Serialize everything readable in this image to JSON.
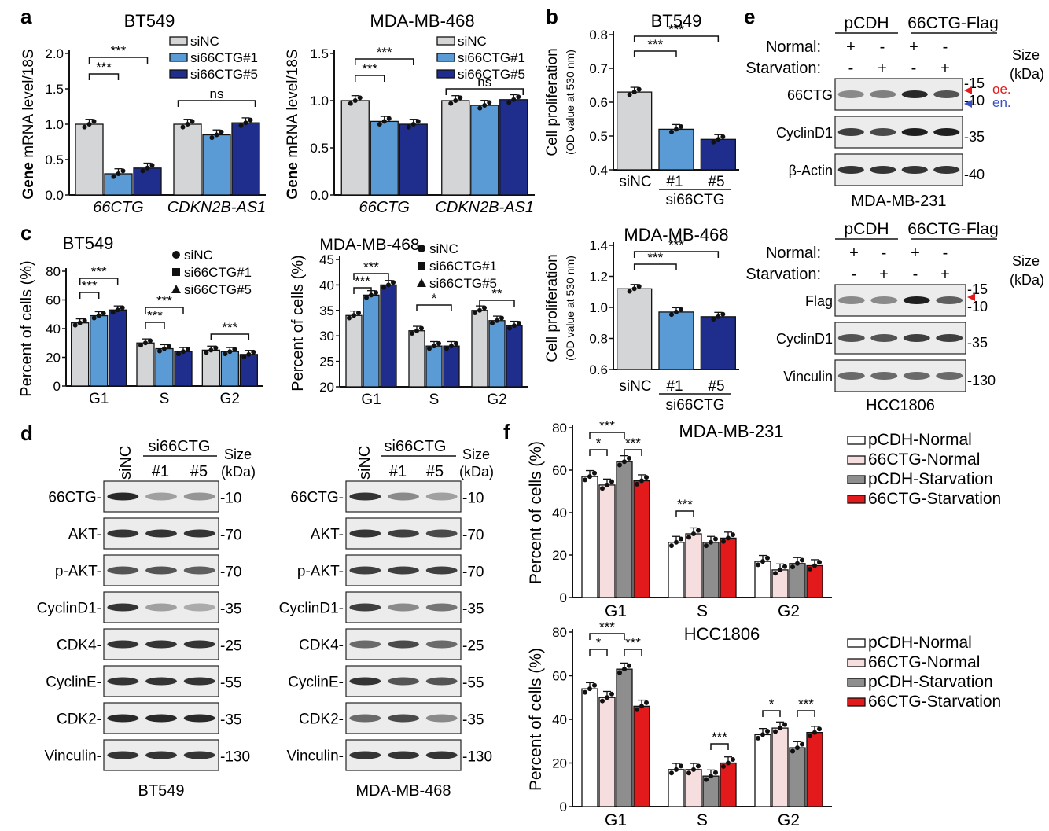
{
  "colors": {
    "grey": "#d4d5d6",
    "light_blue": "#5b9bd5",
    "dark_blue": "#1f2e8c",
    "pink": "#f6dede",
    "dark_grey": "#8e8e8e",
    "red": "#e31a1c",
    "oe_red": "#e31a1c",
    "en_blue": "#3a4fc0"
  },
  "panel_letters": [
    "a",
    "b",
    "c",
    "d",
    "e",
    "f"
  ],
  "stat_labels": {
    "sig3": "***",
    "sig2": "**",
    "sig1": "*",
    "ns": "ns"
  },
  "common": {
    "mrna_ylabel_bold": "Gene",
    "mrna_ylabel_rest": " mRNA level/18S",
    "prolif_ylabel": "Cell proliferation",
    "prolif_ylabel_sub": "(OD value at 530 nm)",
    "pct_ylabel": "Percent of cells (%)",
    "size_label": "Size",
    "kda_label": "(kDa)",
    "normal_label": "Normal:",
    "starv_label": "Starvation:",
    "plus": "+",
    "minus": "-",
    "sinc": "siNC",
    "si66ctg": "si66CTG",
    "lane1": "#1",
    "lane5": "#5",
    "pcdh": "pCDH",
    "flag_group": "66CTG-Flag",
    "oe": "oe.",
    "en": "en."
  },
  "chart_data": [
    {
      "id": "a1",
      "type": "bar",
      "title": "BT549",
      "categories": [
        "66CTG",
        "CDKN2B-AS1"
      ],
      "series": [
        {
          "name": "siNC",
          "values": [
            1.0,
            1.0
          ]
        },
        {
          "name": "si66CTG#1",
          "values": [
            0.3,
            0.85
          ]
        },
        {
          "name": "si66CTG#5",
          "values": [
            0.38,
            1.02
          ]
        }
      ],
      "ylim": [
        0,
        2.0
      ],
      "yticks": [
        "0.0",
        "0.5",
        "1.0",
        "1.5",
        "2.0"
      ]
    },
    {
      "id": "a2",
      "type": "bar",
      "title": "MDA-MB-468",
      "categories": [
        "66CTG",
        "CDKN2B-AS1"
      ],
      "series": [
        {
          "name": "siNC",
          "values": [
            1.0,
            1.0
          ]
        },
        {
          "name": "si66CTG#1",
          "values": [
            0.78,
            0.95
          ]
        },
        {
          "name": "si66CTG#5",
          "values": [
            0.75,
            1.01
          ]
        }
      ],
      "ylim": [
        0,
        1.5
      ],
      "yticks": [
        "0.0",
        "0.5",
        "1.0",
        "1.5"
      ]
    },
    {
      "id": "b1",
      "type": "bar",
      "title": "BT549",
      "categories": [
        "siNC",
        "#1",
        "#5"
      ],
      "values": [
        0.63,
        0.52,
        0.49
      ],
      "ylim": [
        0.4,
        0.8
      ],
      "yticks": [
        "0.4",
        "0.5",
        "0.6",
        "0.7",
        "0.8"
      ]
    },
    {
      "id": "b2",
      "type": "bar",
      "title": "MDA-MB-468",
      "categories": [
        "siNC",
        "#1",
        "#5"
      ],
      "values": [
        1.12,
        0.97,
        0.94
      ],
      "ylim": [
        0.6,
        1.4
      ],
      "yticks": [
        "0.6",
        "0.8",
        "1.0",
        "1.2",
        "1.4"
      ]
    },
    {
      "id": "c1",
      "type": "bar",
      "title": "BT549",
      "categories": [
        "G1",
        "S",
        "G2"
      ],
      "series": [
        {
          "name": "siNC",
          "values": [
            44,
            30,
            25
          ]
        },
        {
          "name": "si66CTG#1",
          "values": [
            49,
            26,
            24
          ]
        },
        {
          "name": "si66CTG#5",
          "values": [
            53,
            24,
            22
          ]
        }
      ],
      "ylim": [
        0,
        80
      ],
      "yticks": [
        "0",
        "20",
        "40",
        "60",
        "80"
      ]
    },
    {
      "id": "c2",
      "type": "bar",
      "title": "MDA-MB-468",
      "categories": [
        "G1",
        "S",
        "G2"
      ],
      "series": [
        {
          "name": "siNC",
          "values": [
            34,
            31,
            35
          ]
        },
        {
          "name": "si66CTG#1",
          "values": [
            38,
            28,
            33
          ]
        },
        {
          "name": "si66CTG#5",
          "values": [
            40,
            28,
            32
          ]
        }
      ],
      "ylim": [
        20,
        45
      ],
      "yticks": [
        "20",
        "25",
        "30",
        "35",
        "40",
        "45"
      ]
    },
    {
      "id": "f1",
      "type": "bar",
      "title": "MDA-MB-231",
      "categories": [
        "G1",
        "S",
        "G2"
      ],
      "series": [
        {
          "name": "pCDH-Normal",
          "values": [
            57,
            26,
            17
          ]
        },
        {
          "name": "66CTG-Normal",
          "values": [
            53,
            30,
            13
          ]
        },
        {
          "name": "pCDH-Starvation",
          "values": [
            64,
            26,
            16
          ]
        },
        {
          "name": "66CTG-Starvation",
          "values": [
            55,
            28,
            15
          ]
        }
      ],
      "ylim": [
        0,
        80
      ],
      "yticks": [
        "0",
        "20",
        "40",
        "60",
        "80"
      ]
    },
    {
      "id": "f2",
      "type": "bar",
      "title": "HCC1806",
      "categories": [
        "G1",
        "S",
        "G2"
      ],
      "series": [
        {
          "name": "pCDH-Normal",
          "values": [
            54,
            17,
            33
          ]
        },
        {
          "name": "66CTG-Normal",
          "values": [
            50,
            17,
            36
          ]
        },
        {
          "name": "pCDH-Starvation",
          "values": [
            63,
            14,
            27
          ]
        },
        {
          "name": "66CTG-Starvation",
          "values": [
            46,
            20,
            34
          ]
        }
      ],
      "ylim": [
        0,
        80
      ],
      "yticks": [
        "0",
        "20",
        "40",
        "60",
        "80"
      ]
    }
  ],
  "blots": {
    "d_left": {
      "cell_line": "BT549",
      "rows": [
        {
          "label": "66CTG-",
          "size": "-10"
        },
        {
          "label": "AKT-",
          "size": "-70"
        },
        {
          "label": "p-AKT-",
          "size": "-70"
        },
        {
          "label": "CyclinD1-",
          "size": "-35"
        },
        {
          "label": "CDK4-",
          "size": "-25"
        },
        {
          "label": "CyclinE-",
          "size": "-55"
        },
        {
          "label": "CDK2-",
          "size": "-35"
        },
        {
          "label": "Vinculin-",
          "size": "-130"
        }
      ]
    },
    "d_right": {
      "cell_line": "MDA-MB-468",
      "rows": [
        {
          "label": "66CTG-",
          "size": "-10"
        },
        {
          "label": "AKT-",
          "size": "-70"
        },
        {
          "label": "p-AKT-",
          "size": "-70"
        },
        {
          "label": "CyclinD1-",
          "size": "-35"
        },
        {
          "label": "CDK4-",
          "size": "-25"
        },
        {
          "label": "CyclinE-",
          "size": "-55"
        },
        {
          "label": "CDK2-",
          "size": "-35"
        },
        {
          "label": "Vinculin-",
          "size": "-130"
        }
      ]
    },
    "e_top": {
      "cell_line": "MDA-MB-231",
      "rows": [
        {
          "label": "66CTG",
          "sizes": [
            "-15",
            "-10"
          ]
        },
        {
          "label": "CyclinD1",
          "sizes": [
            "-35"
          ]
        },
        {
          "label": "β-Actin",
          "sizes": [
            "-40"
          ]
        }
      ]
    },
    "e_bottom": {
      "cell_line": "HCC1806",
      "rows": [
        {
          "label": "Flag",
          "sizes": [
            "-15",
            "-10"
          ]
        },
        {
          "label": "CyclinD1",
          "sizes": [
            "-35"
          ]
        },
        {
          "label": "Vinculin",
          "sizes": [
            "-130"
          ]
        }
      ]
    }
  }
}
